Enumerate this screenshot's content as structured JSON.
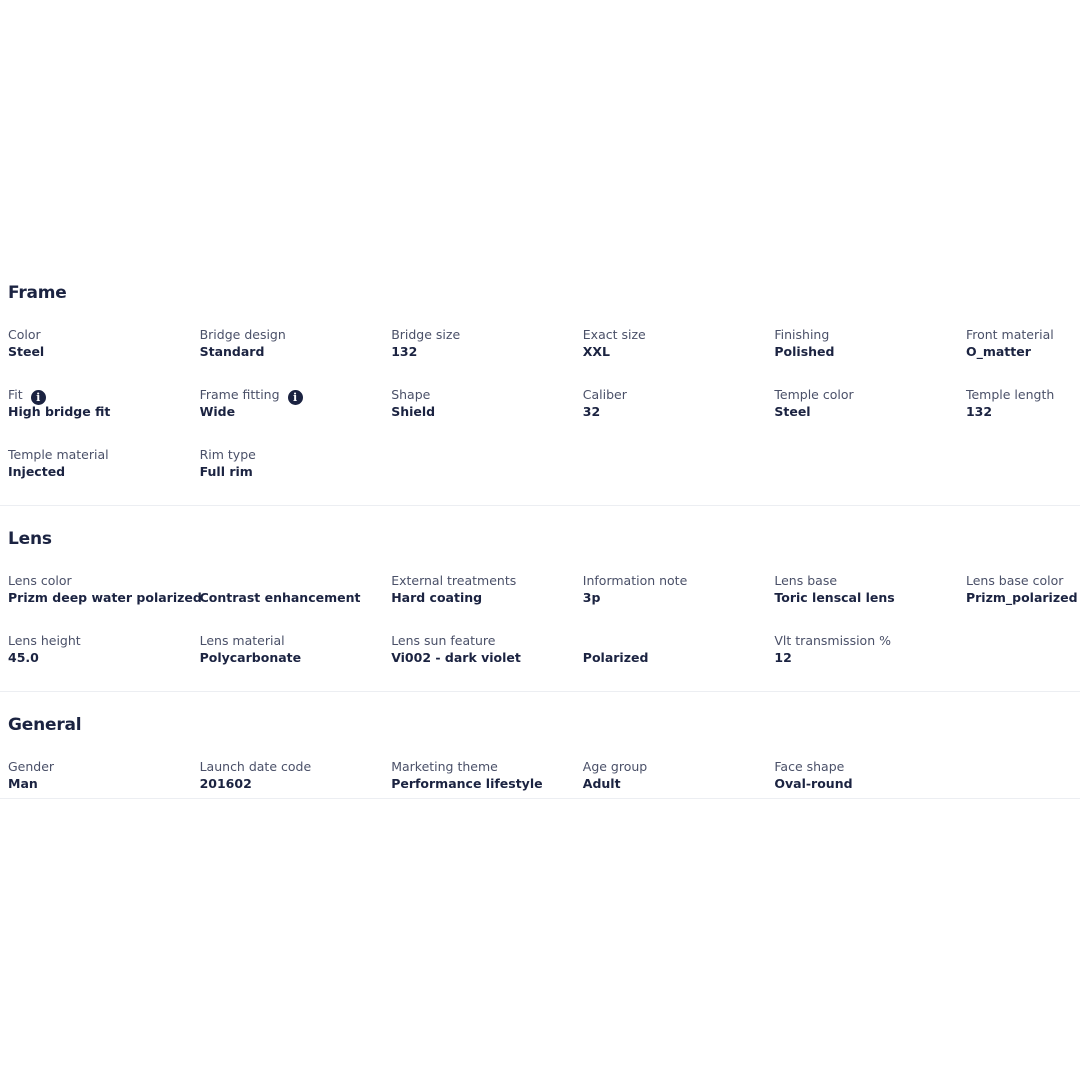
{
  "sections": [
    {
      "title": "Frame",
      "items": [
        {
          "label": "Color",
          "value": "Steel"
        },
        {
          "label": "Bridge design",
          "value": "Standard"
        },
        {
          "label": "Bridge size",
          "value": "132"
        },
        {
          "label": "Exact size",
          "value": "XXL"
        },
        {
          "label": "Finishing",
          "value": "Polished"
        },
        {
          "label": "Front material",
          "value": "O_matter"
        },
        {
          "label": "Fit",
          "value": "High bridge fit",
          "info": true
        },
        {
          "label": "Frame fitting",
          "value": "Wide",
          "info": true
        },
        {
          "label": "Shape",
          "value": "Shield"
        },
        {
          "label": "Caliber",
          "value": "32"
        },
        {
          "label": "Temple color",
          "value": "Steel"
        },
        {
          "label": "Temple length",
          "value": "132"
        },
        {
          "label": "Temple material",
          "value": "Injected"
        },
        {
          "label": "Rim type",
          "value": "Full rim"
        }
      ]
    },
    {
      "title": "Lens",
      "items": [
        {
          "label": "Lens color",
          "value": "Prizm deep water polarized"
        },
        {
          "value": "Contrast enhancement"
        },
        {
          "label": "External treatments",
          "value": "Hard coating"
        },
        {
          "label": "Information note",
          "value": "3p"
        },
        {
          "label": "Lens base",
          "value": "Toric lenscal lens"
        },
        {
          "label": "Lens base color",
          "value": "Prizm_polarized"
        },
        {
          "label": "Lens height",
          "value": "45.0"
        },
        {
          "label": "Lens material",
          "value": "Polycarbonate"
        },
        {
          "label": "Lens sun feature",
          "value": "Vi002 - dark violet"
        },
        {
          "value": "Polarized"
        },
        {
          "label": "Vlt transmission %",
          "value": "12"
        }
      ]
    },
    {
      "title": "General",
      "items": [
        {
          "label": "Gender",
          "value": "Man"
        },
        {
          "label": "Launch date code",
          "value": "201602"
        },
        {
          "label": "Marketing theme",
          "value": "Performance lifestyle"
        },
        {
          "label": "Age group",
          "value": "Adult"
        },
        {
          "label": "Face shape",
          "value": "Oval-round"
        }
      ]
    }
  ]
}
